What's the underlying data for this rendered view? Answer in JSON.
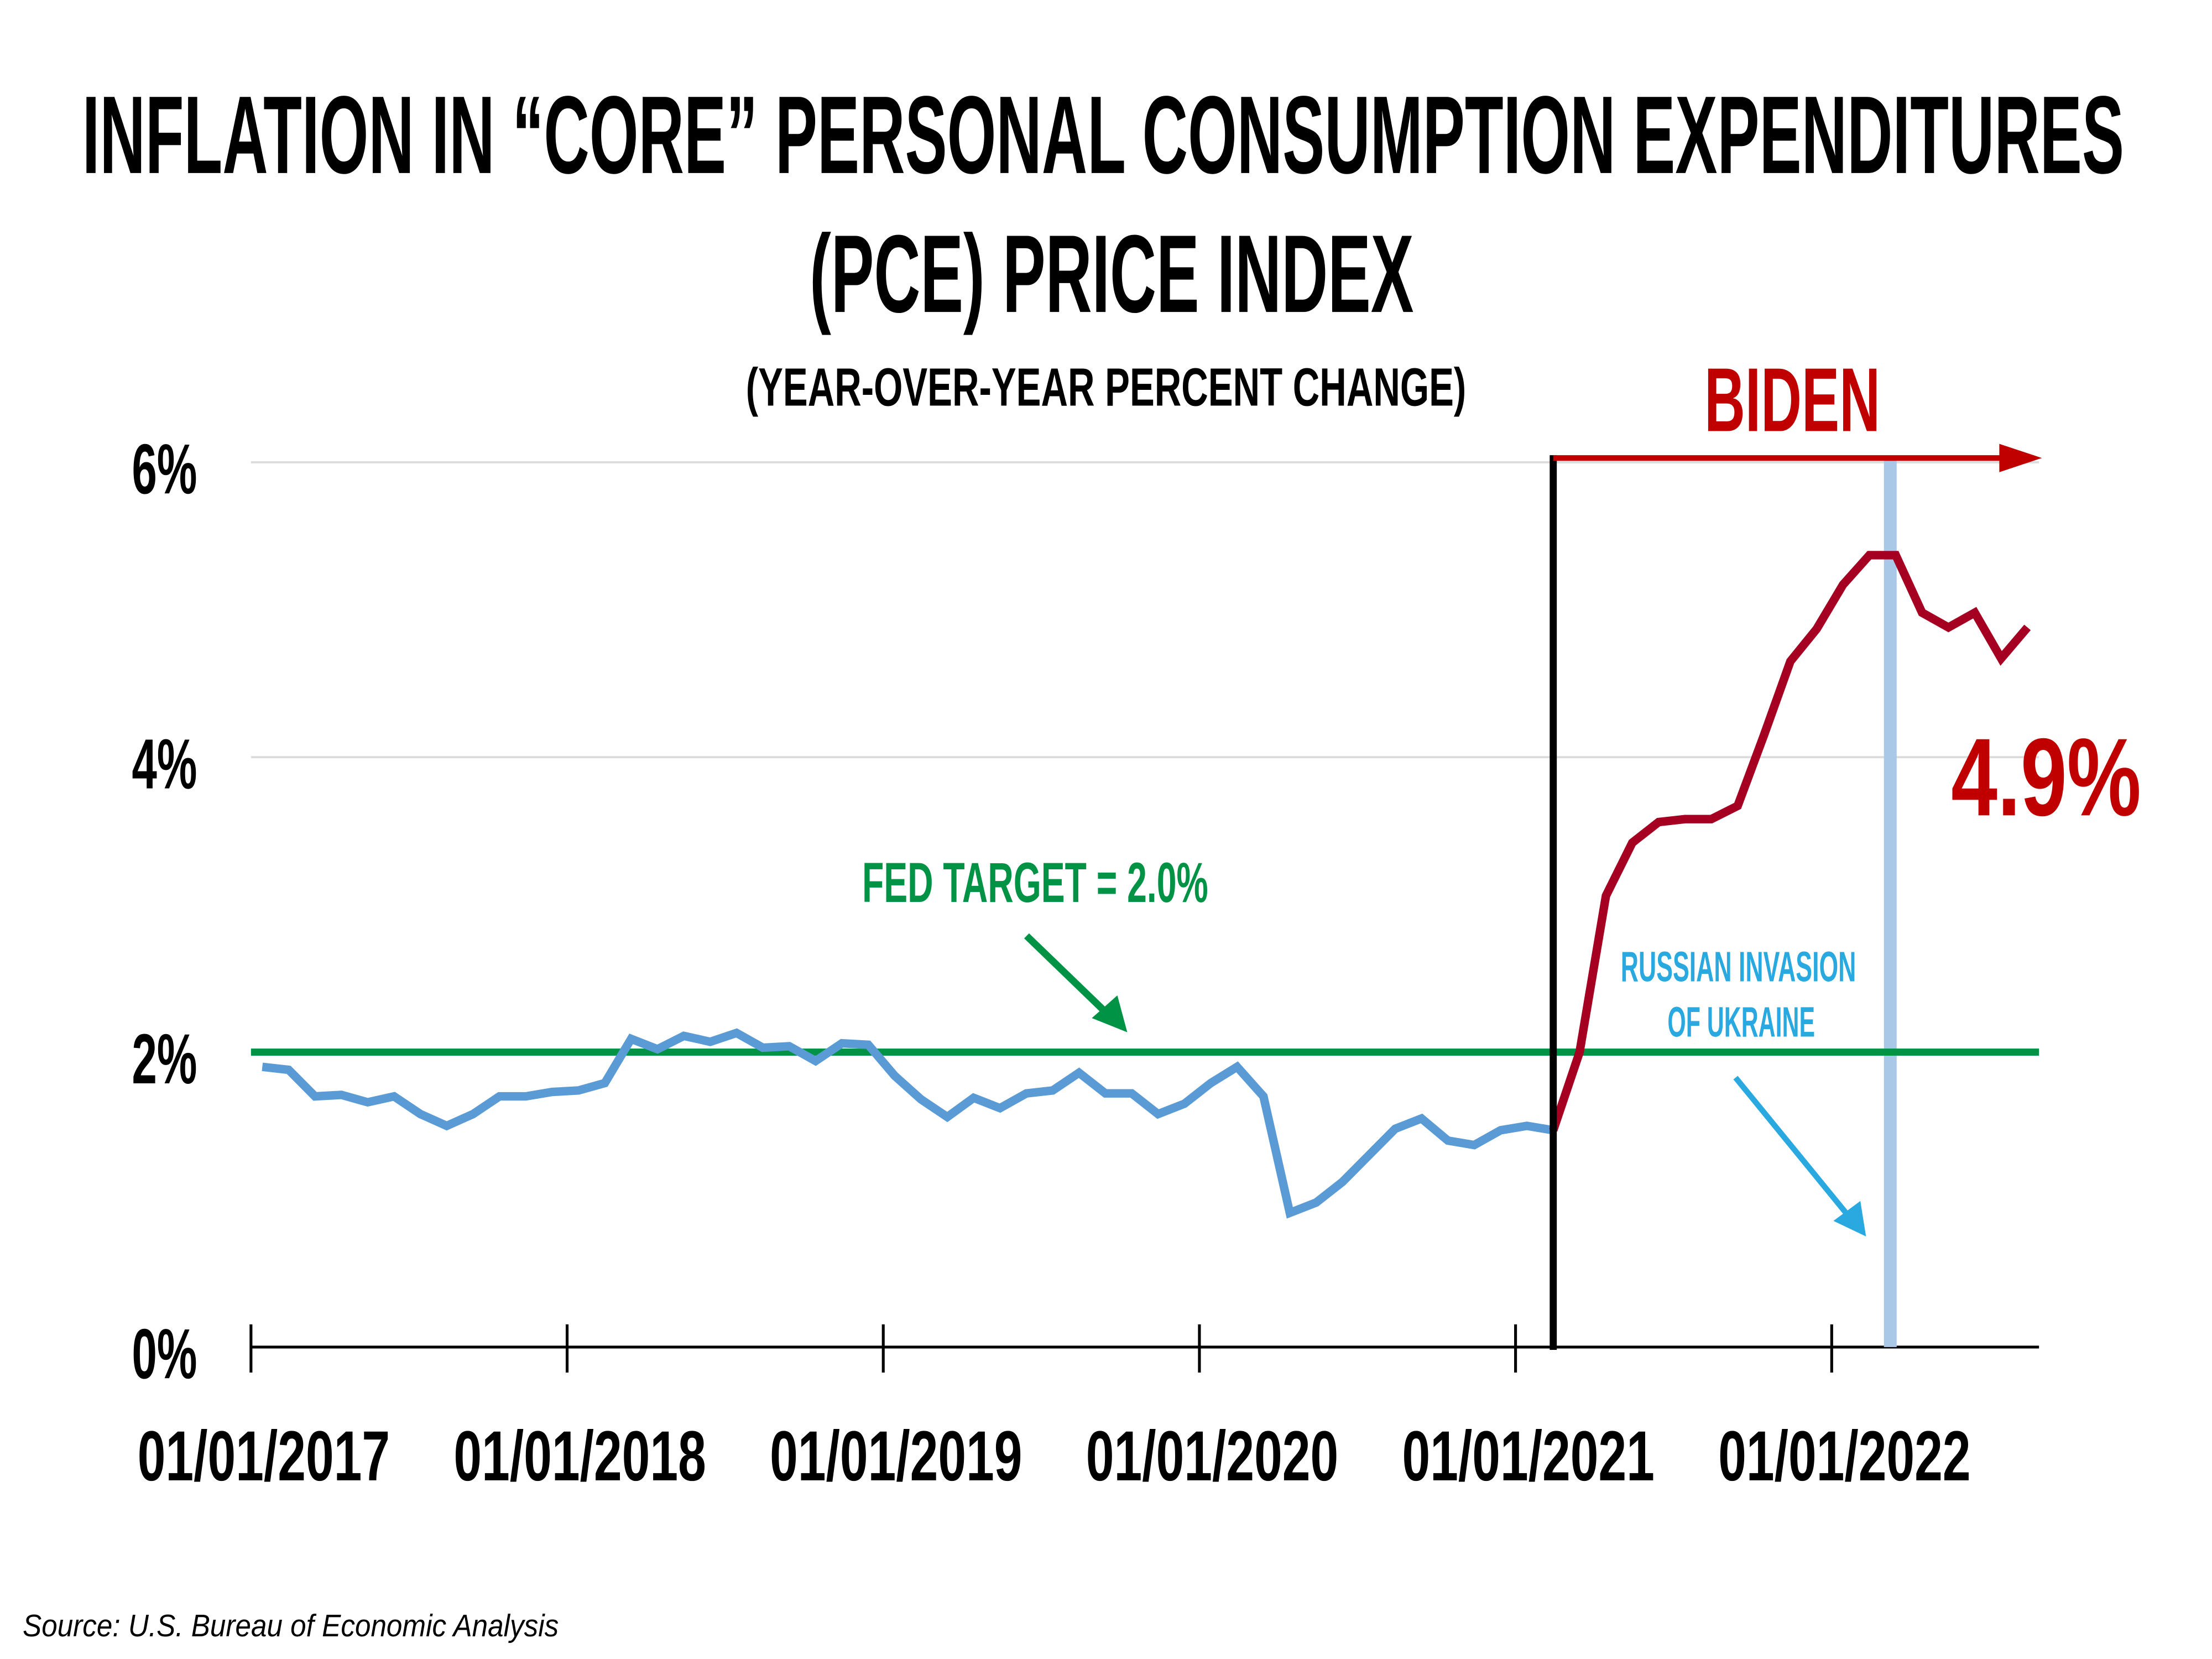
{
  "chart_data": {
    "type": "line",
    "title": "INFLATION IN “CORE” PERSONAL CONSUMPTION EXPENDITURES",
    "title_line2": "(PCE) PRICE INDEX",
    "subtitle": "(YEAR-OVER-YEAR PERCENT CHANGE)",
    "xlabel": "",
    "ylabel": "",
    "ylim": [
      0,
      6
    ],
    "y_ticks": [
      0,
      2,
      4,
      6
    ],
    "y_tick_labels": [
      "0%",
      "2%",
      "4%",
      "6%"
    ],
    "x_range": [
      "2017-01",
      "2022-08"
    ],
    "x_tick_labels": [
      "01/01/2017",
      "01/01/2018",
      "01/01/2019",
      "01/01/2020",
      "01/01/2021",
      "01/01/2022"
    ],
    "x_ticks": [
      "2017-01",
      "2018-01",
      "2019-01",
      "2020-01",
      "2021-01",
      "2022-01"
    ],
    "grid": "horizontal",
    "series": [
      {
        "color": "#5b9bd5",
        "x": [
          "2017-01",
          "2017-02",
          "2017-03",
          "2017-04",
          "2017-05",
          "2017-06",
          "2017-07",
          "2017-08",
          "2017-09",
          "2017-10",
          "2017-11",
          "2017-12",
          "2018-01",
          "2018-02",
          "2018-03",
          "2018-04",
          "2018-05",
          "2018-06",
          "2018-07",
          "2018-08",
          "2018-09",
          "2018-10",
          "2018-11",
          "2018-12",
          "2019-01",
          "2019-02",
          "2019-03",
          "2019-04",
          "2019-05",
          "2019-06",
          "2019-07",
          "2019-08",
          "2019-09",
          "2019-10",
          "2019-11",
          "2019-12",
          "2020-01",
          "2020-02",
          "2020-03",
          "2020-04",
          "2020-05",
          "2020-06",
          "2020-07",
          "2020-08",
          "2020-09",
          "2020-10",
          "2020-11",
          "2020-12",
          "2021-01",
          "2021-02"
        ],
        "values": [
          1.9,
          1.88,
          1.7,
          1.71,
          1.66,
          1.7,
          1.58,
          1.5,
          1.58,
          1.7,
          1.7,
          1.73,
          1.74,
          1.79,
          2.09,
          2.02,
          2.11,
          2.07,
          2.13,
          2.03,
          2.04,
          1.94,
          2.06,
          2.05,
          1.84,
          1.68,
          1.56,
          1.69,
          1.62,
          1.72,
          1.74,
          1.86,
          1.72,
          1.72,
          1.58,
          1.65,
          1.79,
          1.9,
          1.7,
          0.91,
          0.98,
          1.12,
          1.3,
          1.48,
          1.55,
          1.4,
          1.37,
          1.47,
          1.5,
          1.47
        ]
      },
      {
        "color": "#a50021",
        "x": [
          "2021-02",
          "2021-03",
          "2021-04",
          "2021-05",
          "2021-06",
          "2021-07",
          "2021-08",
          "2021-09",
          "2021-10",
          "2021-11",
          "2021-12",
          "2022-01",
          "2022-02",
          "2022-03",
          "2022-04",
          "2022-05",
          "2022-06",
          "2022-07",
          "2022-08"
        ],
        "values": [
          1.47,
          2.0,
          3.06,
          3.42,
          3.56,
          3.58,
          3.58,
          3.67,
          4.15,
          4.65,
          4.87,
          5.17,
          5.37,
          5.37,
          4.98,
          4.88,
          4.98,
          4.67,
          4.88
        ]
      }
    ],
    "reference_line": {
      "value": 2.0,
      "color": "#009245",
      "label": "FED TARGET = 2.0%"
    },
    "annotations": {
      "biden_label": "BIDEN",
      "biden_start": "2021-02",
      "biden_color": "#c00000",
      "latest_value_label": "4.9%",
      "invasion_label_1": "RUSSIAN INVASION",
      "invasion_label_2": "OF UKRAINE",
      "invasion_date": "2022-02-24",
      "invasion_color": "#29a9e0",
      "invasion_band_color": "#a9c8e8"
    },
    "source": "Source: U.S. Bureau of Economic Analysis"
  }
}
